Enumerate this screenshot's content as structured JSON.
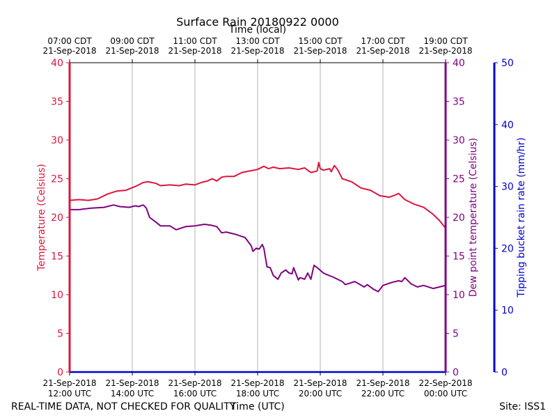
{
  "chart_data": {
    "type": "line",
    "title": "Surface Rain 20180922 0000",
    "top_axis_label": "Time (local)",
    "xlabel": "Time (UTC)",
    "ylabel_left": "Temperature (Celsius)",
    "ylabel_right": "Dew point temperature (Celsius)",
    "ylabel_far_right": "Tipping bucket rain rate (mm/hr)",
    "footer_left": "REAL-TIME DATA, NOT CHECKED FOR QUALITY",
    "footer_right": "Site: ISS1",
    "xlim_hours_utc": [
      12,
      24
    ],
    "ylim_temp": [
      0,
      40
    ],
    "ylim_rain": [
      0,
      50
    ],
    "x_ticks": [
      {
        "h": 12,
        "line1": "21-Sep-2018",
        "line2": "12:00 UTC"
      },
      {
        "h": 14,
        "line1": "21-Sep-2018",
        "line2": "14:00 UTC"
      },
      {
        "h": 16,
        "line1": "21-Sep-2018",
        "line2": "16:00 UTC"
      },
      {
        "h": 18,
        "line1": "21-Sep-2018",
        "line2": "18:00 UTC"
      },
      {
        "h": 20,
        "line1": "21-Sep-2018",
        "line2": "20:00 UTC"
      },
      {
        "h": 22,
        "line1": "21-Sep-2018",
        "line2": "22:00 UTC"
      },
      {
        "h": 24,
        "line1": "22-Sep-2018",
        "line2": "00:00 UTC"
      }
    ],
    "top_ticks": [
      {
        "h": 12,
        "line1": "07:00 CDT",
        "line2": "21-Sep-2018"
      },
      {
        "h": 14,
        "line1": "09:00 CDT",
        "line2": "21-Sep-2018"
      },
      {
        "h": 16,
        "line1": "11:00 CDT",
        "line2": "21-Sep-2018"
      },
      {
        "h": 18,
        "line1": "13:00 CDT",
        "line2": "21-Sep-2018"
      },
      {
        "h": 20,
        "line1": "15:00 CDT",
        "line2": "21-Sep-2018"
      },
      {
        "h": 22,
        "line1": "17:00 CDT",
        "line2": "21-Sep-2018"
      },
      {
        "h": 24,
        "line1": "19:00 CDT",
        "line2": "21-Sep-2018"
      }
    ],
    "temp_ticks": [
      0,
      5,
      10,
      15,
      20,
      25,
      30,
      35,
      40
    ],
    "rain_ticks": [
      0,
      10,
      20,
      30,
      40,
      50
    ],
    "colors": {
      "temperature": "#dc143c",
      "dewpoint": "#800080",
      "rain": "#0000cd",
      "grid": "#b0b0b0"
    },
    "series": [
      {
        "name": "Temperature",
        "x": [
          12.0,
          12.3,
          12.6,
          12.9,
          13.2,
          13.5,
          13.8,
          14.1,
          14.35,
          14.5,
          14.75,
          14.9,
          15.2,
          15.5,
          15.7,
          16.0,
          16.2,
          16.4,
          16.55,
          16.7,
          16.85,
          17.0,
          17.25,
          17.5,
          17.75,
          18.0,
          18.2,
          18.35,
          18.5,
          18.7,
          19.0,
          19.3,
          19.5,
          19.7,
          19.9,
          19.95,
          20.0,
          20.1,
          20.3,
          20.35,
          20.45,
          20.55,
          20.7,
          21.0,
          21.3,
          21.6,
          21.9,
          22.2,
          22.4,
          22.5,
          22.7,
          23.0,
          23.3,
          23.6,
          23.8,
          24.0
        ],
        "values": [
          22.2,
          22.3,
          22.2,
          22.4,
          23.0,
          23.4,
          23.5,
          24.0,
          24.5,
          24.6,
          24.4,
          24.1,
          24.2,
          24.1,
          24.3,
          24.2,
          24.5,
          24.7,
          25.0,
          24.7,
          25.2,
          25.3,
          25.3,
          25.8,
          26.0,
          26.2,
          26.6,
          26.3,
          26.5,
          26.3,
          26.4,
          26.2,
          26.4,
          25.8,
          26.0,
          27.1,
          26.3,
          26.1,
          26.3,
          25.9,
          26.7,
          26.2,
          25.0,
          24.6,
          23.8,
          23.5,
          22.8,
          22.6,
          22.9,
          23.1,
          22.3,
          21.7,
          21.3,
          20.4,
          19.6,
          18.6
        ]
      },
      {
        "name": "Dew point",
        "x": [
          12.0,
          12.3,
          12.7,
          13.1,
          13.4,
          13.6,
          13.9,
          14.1,
          14.2,
          14.35,
          14.45,
          14.55,
          14.75,
          14.9,
          15.2,
          15.4,
          15.7,
          16.0,
          16.3,
          16.5,
          16.7,
          16.85,
          17.0,
          17.3,
          17.6,
          17.8,
          17.85,
          17.95,
          18.05,
          18.15,
          18.2,
          18.3,
          18.4,
          18.5,
          18.65,
          18.75,
          18.9,
          19.0,
          19.1,
          19.15,
          19.3,
          19.35,
          19.5,
          19.6,
          19.7,
          19.8,
          19.9,
          20.1,
          20.2,
          20.4,
          20.7,
          20.8,
          21.1,
          21.4,
          21.5,
          21.7,
          21.85,
          22.0,
          22.3,
          22.5,
          22.6,
          22.7,
          22.9,
          23.1,
          23.3,
          23.6,
          24.0
        ],
        "values": [
          21.0,
          21.0,
          21.2,
          21.3,
          21.6,
          21.4,
          21.3,
          21.5,
          21.4,
          21.6,
          21.2,
          20.0,
          19.4,
          18.9,
          18.9,
          18.4,
          18.8,
          18.9,
          19.1,
          19.0,
          18.8,
          18.0,
          18.1,
          17.8,
          17.4,
          16.3,
          15.6,
          16.0,
          15.9,
          16.5,
          16.0,
          13.6,
          13.5,
          12.5,
          12.0,
          12.8,
          13.2,
          12.8,
          12.7,
          13.5,
          11.9,
          12.2,
          12.0,
          12.8,
          12.0,
          13.8,
          13.5,
          12.8,
          12.6,
          12.3,
          11.7,
          11.3,
          11.7,
          11.0,
          11.3,
          10.7,
          10.4,
          11.2,
          11.6,
          11.8,
          11.7,
          12.2,
          11.4,
          11.0,
          11.2,
          10.8,
          11.2
        ]
      },
      {
        "name": "Tipping bucket rain rate",
        "x": [
          12.0,
          24.0
        ],
        "values": [
          0.0,
          0.0
        ]
      }
    ]
  }
}
